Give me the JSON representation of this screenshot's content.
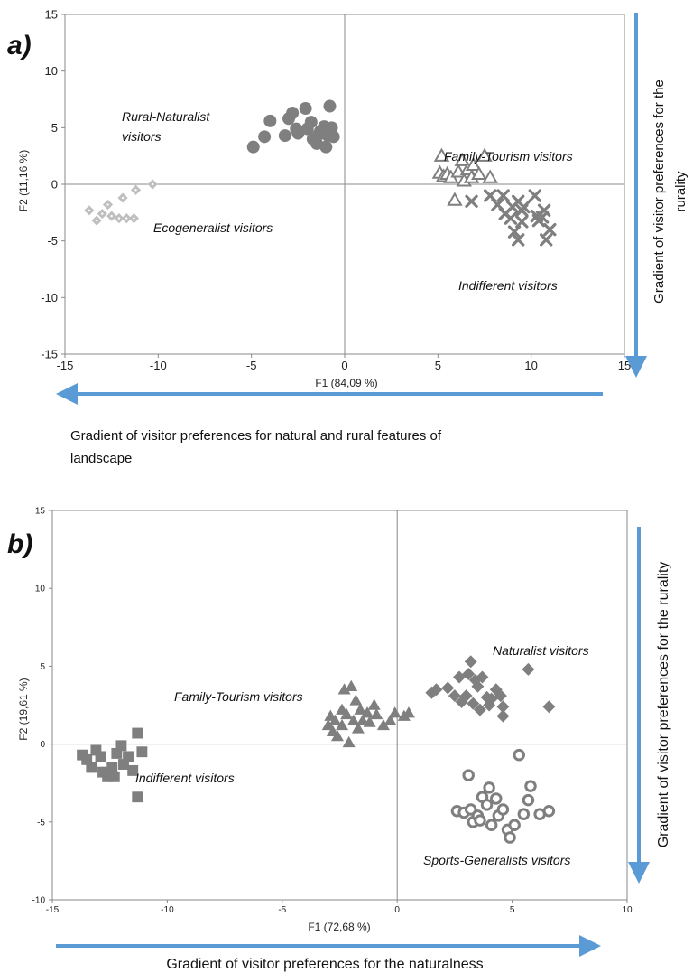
{
  "chart_data": [
    {
      "type": "scatter",
      "panel_label": "a)",
      "xlabel": "F1 (84,09 %)",
      "ylabel": "F2 (11,16 %)",
      "xlim": [
        -15,
        15
      ],
      "ylim": [
        -15,
        15
      ],
      "x_ticks": [
        "-15",
        "-10",
        "-5",
        "0",
        "5",
        "10",
        "15"
      ],
      "y_ticks": [
        "15",
        "10",
        "5",
        "0",
        "-5",
        "-10",
        "-15"
      ],
      "grid": false,
      "colors": {
        "dark": "#7f7f7f",
        "light": "#bfbfbf",
        "accent": "#5b9bd5"
      },
      "cluster_labels": [
        {
          "id": "rural",
          "lines": [
            "Rural-Naturalist",
            "visitors"
          ]
        },
        {
          "id": "eco",
          "lines": [
            "Ecogeneralist visitors"
          ]
        },
        {
          "id": "family",
          "lines": [
            "Family-Tourism visitors"
          ]
        },
        {
          "id": "indiff",
          "lines": [
            "Indifferent visitors"
          ]
        }
      ],
      "gradient_x": {
        "lines": [
          "Gradient of visitor preferences for natural and rural features of",
          "landscape"
        ],
        "direction": "left"
      },
      "gradient_y": {
        "lines": [
          "Gradient of visitor preferences for the",
          "rurality"
        ],
        "direction": "down"
      },
      "series": [
        {
          "name": "Rural-Naturalist visitors",
          "marker": "circle",
          "points": [
            [
              -4.9,
              3.3
            ],
            [
              -4.3,
              4.2
            ],
            [
              -4.0,
              5.6
            ],
            [
              -3.2,
              4.3
            ],
            [
              -3.0,
              5.8
            ],
            [
              -2.8,
              6.3
            ],
            [
              -2.5,
              4.5
            ],
            [
              -2.1,
              6.7
            ],
            [
              -2.0,
              4.9
            ],
            [
              -1.8,
              5.5
            ],
            [
              -1.7,
              4.0
            ],
            [
              -1.5,
              3.6
            ],
            [
              -1.3,
              4.7
            ],
            [
              -1.1,
              5.1
            ],
            [
              -1.0,
              3.3
            ],
            [
              -0.9,
              4.3
            ],
            [
              -0.8,
              6.9
            ],
            [
              -0.7,
              5.0
            ],
            [
              -2.6,
              4.9
            ],
            [
              -1.4,
              4.4
            ],
            [
              -0.6,
              4.2
            ]
          ]
        },
        {
          "name": "Ecogeneralist visitors",
          "marker": "diamond",
          "points": [
            [
              -13.7,
              -2.3
            ],
            [
              -13.3,
              -3.2
            ],
            [
              -13.0,
              -2.6
            ],
            [
              -12.7,
              -1.8
            ],
            [
              -12.5,
              -2.8
            ],
            [
              -12.1,
              -3.0
            ],
            [
              -11.9,
              -1.2
            ],
            [
              -11.7,
              -3.0
            ],
            [
              -11.3,
              -3.0
            ],
            [
              -11.2,
              -0.5
            ],
            [
              -10.3,
              0.0
            ]
          ]
        },
        {
          "name": "Family-Tourism visitors",
          "marker": "triangle",
          "points": [
            [
              5.1,
              1.0
            ],
            [
              5.2,
              2.5
            ],
            [
              5.3,
              0.7
            ],
            [
              5.5,
              0.9
            ],
            [
              5.7,
              0.6
            ],
            [
              5.9,
              -1.4
            ],
            [
              6.1,
              1.1
            ],
            [
              6.3,
              2.1
            ],
            [
              6.4,
              0.3
            ],
            [
              6.6,
              1.3
            ],
            [
              6.8,
              0.6
            ],
            [
              6.9,
              1.7
            ],
            [
              7.2,
              0.9
            ],
            [
              7.5,
              2.5
            ],
            [
              7.8,
              0.6
            ]
          ]
        },
        {
          "name": "Indifferent visitors",
          "marker": "cross",
          "points": [
            [
              6.8,
              -1.5
            ],
            [
              7.8,
              -1.0
            ],
            [
              8.2,
              -1.8
            ],
            [
              8.5,
              -1.0
            ],
            [
              8.6,
              -2.6
            ],
            [
              8.9,
              -3.0
            ],
            [
              9.0,
              -2.0
            ],
            [
              9.1,
              -4.2
            ],
            [
              9.3,
              -1.5
            ],
            [
              9.5,
              -2.3
            ],
            [
              9.5,
              -3.3
            ],
            [
              9.6,
              -2.0
            ],
            [
              9.3,
              -4.9
            ],
            [
              10.2,
              -1.0
            ],
            [
              10.3,
              -2.8
            ],
            [
              10.4,
              -3.2
            ],
            [
              10.6,
              -2.9
            ],
            [
              10.7,
              -2.3
            ],
            [
              11.0,
              -4.0
            ],
            [
              10.8,
              -4.9
            ]
          ]
        }
      ]
    },
    {
      "type": "scatter",
      "panel_label": "b)",
      "xlabel": "F1 (72,68 %)",
      "ylabel": "F2 (19,61 %)",
      "xlim": [
        -15,
        10
      ],
      "ylim": [
        -10,
        15
      ],
      "x_ticks": [
        "-15",
        "-10",
        "-5",
        "0",
        "5",
        "10"
      ],
      "y_ticks": [
        "15",
        "10",
        "5",
        "0",
        "-5",
        "-10"
      ],
      "grid": false,
      "colors": {
        "dark": "#7f7f7f",
        "light": "#bfbfbf",
        "accent": "#5b9bd5"
      },
      "cluster_labels": [
        {
          "id": "nat",
          "lines": [
            "Naturalist visitors"
          ]
        },
        {
          "id": "fam",
          "lines": [
            "Family-Tourism visitors"
          ]
        },
        {
          "id": "ind",
          "lines": [
            "Indifferent visitors"
          ]
        },
        {
          "id": "sport",
          "lines": [
            "Sports-Generalists visitors"
          ]
        }
      ],
      "gradient_x": {
        "lines": [
          "Gradient of visitor preferences for the naturalness"
        ],
        "direction": "right"
      },
      "gradient_y": {
        "lines": [
          "Gradient of visitor preferences for the rurality"
        ],
        "direction": "down"
      },
      "series": [
        {
          "name": "Naturalist visitors",
          "marker": "diamond",
          "points": [
            [
              1.5,
              3.3
            ],
            [
              1.7,
              3.5
            ],
            [
              2.2,
              3.6
            ],
            [
              2.5,
              3.1
            ],
            [
              2.7,
              4.3
            ],
            [
              2.8,
              2.7
            ],
            [
              3.0,
              3.1
            ],
            [
              3.1,
              4.5
            ],
            [
              3.2,
              5.3
            ],
            [
              3.3,
              2.6
            ],
            [
              3.5,
              3.7
            ],
            [
              3.6,
              2.2
            ],
            [
              3.7,
              4.3
            ],
            [
              3.9,
              3.0
            ],
            [
              4.0,
              2.5
            ],
            [
              4.3,
              3.5
            ],
            [
              4.5,
              3.1
            ],
            [
              4.6,
              2.4
            ],
            [
              4.6,
              1.8
            ],
            [
              5.7,
              4.8
            ],
            [
              6.6,
              2.4
            ],
            [
              3.4,
              4.1
            ],
            [
              4.1,
              2.9
            ]
          ]
        },
        {
          "name": "Family-Tourism visitors",
          "marker": "triangle",
          "points": [
            [
              -3.0,
              1.2
            ],
            [
              -2.9,
              1.8
            ],
            [
              -2.8,
              0.8
            ],
            [
              -2.7,
              1.5
            ],
            [
              -2.6,
              0.5
            ],
            [
              -2.4,
              2.2
            ],
            [
              -2.3,
              3.5
            ],
            [
              -2.2,
              1.9
            ],
            [
              -2.1,
              0.1
            ],
            [
              -2.0,
              3.7
            ],
            [
              -1.9,
              1.5
            ],
            [
              -1.8,
              2.8
            ],
            [
              -1.7,
              1.0
            ],
            [
              -1.6,
              2.2
            ],
            [
              -1.5,
              1.5
            ],
            [
              -1.3,
              2.0
            ],
            [
              -1.0,
              2.5
            ],
            [
              -0.9,
              1.9
            ],
            [
              -0.6,
              1.2
            ],
            [
              -0.3,
              1.5
            ],
            [
              -0.1,
              2.0
            ],
            [
              0.3,
              1.8
            ],
            [
              0.5,
              2.0
            ],
            [
              -2.4,
              1.2
            ],
            [
              -1.2,
              1.4
            ]
          ]
        },
        {
          "name": "Indifferent visitors",
          "marker": "square",
          "points": [
            [
              -13.7,
              -0.7
            ],
            [
              -13.5,
              -1.0
            ],
            [
              -13.3,
              -1.5
            ],
            [
              -13.1,
              -0.4
            ],
            [
              -12.9,
              -0.8
            ],
            [
              -12.8,
              -1.8
            ],
            [
              -12.6,
              -2.1
            ],
            [
              -12.4,
              -1.5
            ],
            [
              -12.2,
              -0.6
            ],
            [
              -12.0,
              -0.1
            ],
            [
              -11.9,
              -1.3
            ],
            [
              -11.7,
              -0.8
            ],
            [
              -11.5,
              -1.7
            ],
            [
              -11.3,
              0.7
            ],
            [
              -11.1,
              -0.5
            ],
            [
              -11.3,
              -3.4
            ],
            [
              -12.3,
              -2.1
            ]
          ]
        },
        {
          "name": "Sports-Generalists visitors",
          "marker": "ring",
          "points": [
            [
              2.6,
              -4.3
            ],
            [
              2.9,
              -4.4
            ],
            [
              3.1,
              -2.0
            ],
            [
              3.2,
              -4.2
            ],
            [
              3.3,
              -5.0
            ],
            [
              3.5,
              -4.6
            ],
            [
              3.7,
              -3.4
            ],
            [
              3.9,
              -3.9
            ],
            [
              4.0,
              -2.8
            ],
            [
              4.1,
              -5.2
            ],
            [
              4.3,
              -3.5
            ],
            [
              4.4,
              -4.6
            ],
            [
              4.6,
              -4.2
            ],
            [
              4.8,
              -5.5
            ],
            [
              4.9,
              -6.0
            ],
            [
              5.1,
              -5.2
            ],
            [
              5.3,
              -0.7
            ],
            [
              5.5,
              -4.5
            ],
            [
              5.7,
              -3.6
            ],
            [
              5.8,
              -2.7
            ],
            [
              6.2,
              -4.5
            ],
            [
              6.6,
              -4.3
            ],
            [
              3.6,
              -4.9
            ]
          ]
        }
      ]
    }
  ]
}
